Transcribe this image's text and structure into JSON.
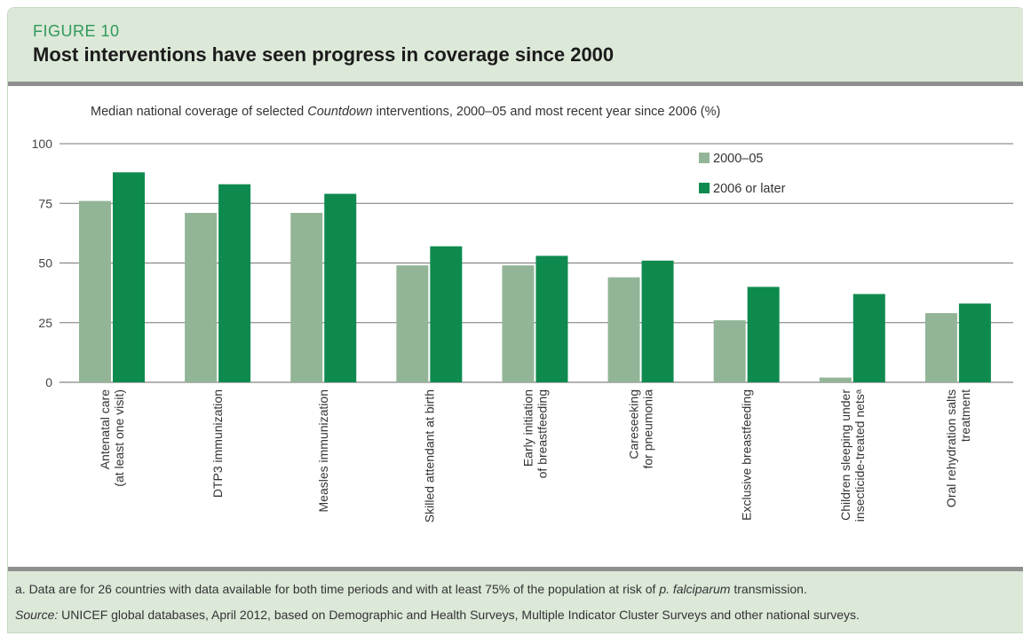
{
  "figure_label": "FIGURE 10",
  "title": "Most interventions have seen progress in coverage since 2000",
  "subtitle": {
    "before": "Median national coverage of selected ",
    "italic": "Countdown",
    "after": " interventions, 2000–05 and most recent year since 2006 (%)"
  },
  "footnote": {
    "prefix": "a. Data are for 26 countries with data available for both time periods and with at least 75% of the population at risk of ",
    "italic": "p. falciparum",
    "suffix": " transmission."
  },
  "source": {
    "label": "Source:",
    "text": " UNICEF global databases, April 2012, based on Demographic and Health Surveys, Multiple Indicator Cluster Surveys and other national surveys."
  },
  "colors": {
    "series_2000_05": "#93b597",
    "series_2006": "#0e8a4e",
    "header_bg": "#dce8d8",
    "rule": "#8f8f8f"
  },
  "chart_data": {
    "type": "bar",
    "ylim": [
      0,
      100
    ],
    "yticks": [
      0,
      25,
      50,
      75,
      100
    ],
    "grid": true,
    "legend_position": "top-right",
    "categories": [
      [
        "Antenatal care",
        "(at least one visit)"
      ],
      [
        "DTP3 immunization"
      ],
      [
        "Measles immunization"
      ],
      [
        "Skilled attendant at birth"
      ],
      [
        "Early initiation",
        "of breastfeeding"
      ],
      [
        "Careseeking",
        "for pneumonia"
      ],
      [
        "Exclusive breastfeeding"
      ],
      [
        "Children sleeping under",
        "insecticide-treated netsᵃ"
      ],
      [
        "Oral rehydration salts",
        "treatment"
      ]
    ],
    "series": [
      {
        "name": "2000–05",
        "color": "#93b597",
        "values": [
          76,
          71,
          71,
          49,
          49,
          44,
          26,
          2,
          29
        ]
      },
      {
        "name": "2006 or later",
        "color": "#0e8a4e",
        "values": [
          88,
          83,
          79,
          57,
          53,
          51,
          40,
          37,
          33
        ]
      }
    ]
  }
}
